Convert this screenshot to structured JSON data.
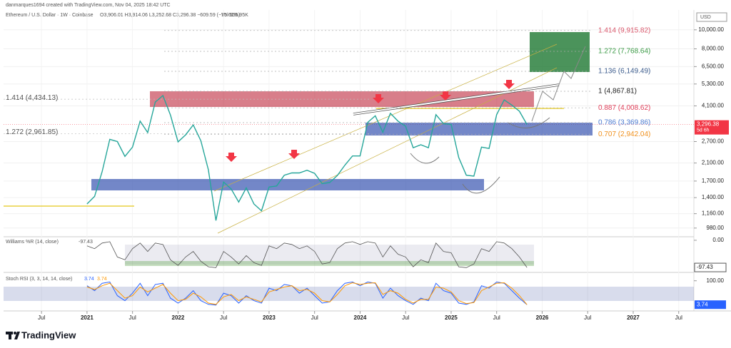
{
  "header": {
    "author": "danmarques1694 created with TradingView.com, Nov 04, 2025 18:42 UTC",
    "symbol": "Ethereum / U.S. Dollar · 1W · Coinbase",
    "ohlc": "O3,906.01 H3,914.06 L3,252.68 C3,296.38 −609.59 (−15.61%)",
    "volume": "Vol 555.95K",
    "currency": "USD"
  },
  "chart_data": [
    {
      "type": "line",
      "log_scale": true,
      "grid": true,
      "color": "#26a69a",
      "x": [
        "2021-01",
        "2021-02",
        "2021-03",
        "2021-04",
        "2021-05",
        "2021-06",
        "2021-07",
        "2021-08",
        "2021-09",
        "2021-10",
        "2021-11",
        "2021-12",
        "2022-01",
        "2022-02",
        "2022-03",
        "2022-04",
        "2022-05",
        "2022-06",
        "2022-07",
        "2022-08",
        "2022-09",
        "2022-10",
        "2022-11",
        "2022-12",
        "2023-01",
        "2023-02",
        "2023-03",
        "2023-04",
        "2023-05",
        "2023-06",
        "2023-07",
        "2023-08",
        "2023-09",
        "2023-10",
        "2023-11",
        "2023-12",
        "2024-01",
        "2024-02",
        "2024-03",
        "2024-04",
        "2024-05",
        "2024-06",
        "2024-07",
        "2024-08",
        "2024-09",
        "2024-10",
        "2024-11",
        "2024-12",
        "2025-01",
        "2025-02",
        "2025-03",
        "2025-04",
        "2025-05",
        "2025-06",
        "2025-07",
        "2025-08",
        "2025-09",
        "2025-10",
        "2025-11"
      ],
      "values": [
        1300,
        1420,
        1900,
        2770,
        2700,
        2270,
        2530,
        3430,
        3000,
        4290,
        4630,
        3680,
        2690,
        2920,
        3280,
        2730,
        1940,
        1070,
        1680,
        1550,
        1330,
        1570,
        1300,
        1200,
        1585,
        1605,
        1820,
        1870,
        1870,
        1930,
        1860,
        1650,
        1670,
        1815,
        2050,
        2280,
        2280,
        3380,
        3650,
        3010,
        3760,
        3430,
        3230,
        2510,
        2600,
        2510,
        3700,
        3330,
        3300,
        2240,
        1820,
        1800,
        2530,
        2490,
        3700,
        4400,
        4140,
        3850,
        3296.38
      ],
      "xlim": [
        "2020-02",
        "2027-09"
      ],
      "xticks": [
        {
          "value": "2020-07",
          "label": "Jul"
        },
        {
          "value": "2021-01",
          "label": "2021"
        },
        {
          "value": "2021-07",
          "label": "Jul"
        },
        {
          "value": "2022-01",
          "label": "2022"
        },
        {
          "value": "2022-07",
          "label": "Jul"
        },
        {
          "value": "2023-01",
          "label": "2023"
        },
        {
          "value": "2023-07",
          "label": "Jul"
        },
        {
          "value": "2024-01",
          "label": "2024"
        },
        {
          "value": "2024-07",
          "label": "Jul"
        },
        {
          "value": "2025-01",
          "label": "2025"
        },
        {
          "value": "2025-07",
          "label": "Jul"
        },
        {
          "value": "2026-01",
          "label": "2026"
        },
        {
          "value": "2026-07",
          "label": "Jul"
        },
        {
          "value": "2027-01",
          "label": "2027"
        },
        {
          "value": "2027-07",
          "label": "Jul"
        }
      ],
      "ylim": [
        900,
        12200
      ],
      "yticks": [
        {
          "value": 10000,
          "label": "10,000.00"
        },
        {
          "value": 8000,
          "label": "8,000.00"
        },
        {
          "value": 6500,
          "label": "6,500.00"
        },
        {
          "value": 5300,
          "label": "5,300.00"
        },
        {
          "value": 4100,
          "label": "4,100.00"
        },
        {
          "value": 2700,
          "label": "2,700.00"
        },
        {
          "value": 2100,
          "label": "2,100.00"
        },
        {
          "value": 1700,
          "label": "1,700.00"
        },
        {
          "value": 1400,
          "label": "1,400.00"
        },
        {
          "value": 1160,
          "label": "1,160.00"
        },
        {
          "value": 980,
          "label": "980.00"
        }
      ],
      "last_price": {
        "value": 3296.38,
        "label": "3,296.38"
      },
      "countdown": "5d 6h",
      "fib_levels": [
        {
          "value": 9915.82,
          "label": "1.414 (9,915.82)",
          "color": "#d9576b"
        },
        {
          "value": 7768.64,
          "label": "1.272 (7,768.64)",
          "color": "#3a9a45"
        },
        {
          "value": 6149.49,
          "label": "1.136 (6,149.49)",
          "color": "#3b5b8c"
        },
        {
          "value": 4867.81,
          "label": "1 (4,867.81)",
          "color": "#222222"
        },
        {
          "value": 4008.62,
          "label": "0.887 (4,008.62)",
          "color": "#e0405a"
        },
        {
          "value": 3369.86,
          "label": "0.786 (3,369.86)",
          "color": "#4a79d0"
        },
        {
          "value": 2942.04,
          "label": "0.707 (2,942.04)",
          "color": "#f0901c"
        }
      ],
      "fib_levels_left": [
        {
          "value": 4434.13,
          "label": "1.414 (4,434.13)",
          "color": "#555555"
        },
        {
          "value": 2961.85,
          "label": "1.272 (2,961.85)",
          "color": "#555555"
        }
      ]
    },
    {
      "type": "line",
      "title": "Williams %R (14, close)",
      "color": "#555555",
      "x": [
        "2021-01",
        "2021-02",
        "2021-03",
        "2021-04",
        "2021-05",
        "2021-06",
        "2021-07",
        "2021-08",
        "2021-09",
        "2021-10",
        "2021-11",
        "2021-12",
        "2022-01",
        "2022-02",
        "2022-03",
        "2022-04",
        "2022-05",
        "2022-06",
        "2022-07",
        "2022-08",
        "2022-09",
        "2022-10",
        "2022-11",
        "2022-12",
        "2023-01",
        "2023-02",
        "2023-03",
        "2023-04",
        "2023-05",
        "2023-06",
        "2023-07",
        "2023-08",
        "2023-09",
        "2023-10",
        "2023-11",
        "2023-12",
        "2024-01",
        "2024-02",
        "2024-03",
        "2024-04",
        "2024-05",
        "2024-06",
        "2024-07",
        "2024-08",
        "2024-09",
        "2024-10",
        "2024-11",
        "2024-12",
        "2025-01",
        "2025-02",
        "2025-03",
        "2025-04",
        "2025-05",
        "2025-06",
        "2025-07",
        "2025-08",
        "2025-09",
        "2025-10",
        "2025-11"
      ],
      "values": [
        -20,
        -30,
        -10,
        -5,
        -60,
        -70,
        -30,
        -10,
        -40,
        -10,
        -15,
        -70,
        -90,
        -60,
        -40,
        -75,
        -95,
        -98,
        -40,
        -60,
        -85,
        -55,
        -80,
        -90,
        -20,
        -30,
        -10,
        -15,
        -30,
        -20,
        -40,
        -85,
        -80,
        -30,
        -10,
        -5,
        -15,
        -5,
        -10,
        -60,
        -20,
        -50,
        -60,
        -95,
        -70,
        -80,
        -10,
        -40,
        -45,
        -95,
        -98,
        -85,
        -30,
        -40,
        -5,
        -10,
        -30,
        -60,
        -97.43
      ],
      "xlim": [
        "2020-02",
        "2027-09"
      ],
      "ylim": [
        -110,
        10
      ],
      "yticks": [
        {
          "value": 0,
          "label": "0.00"
        }
      ]
    },
    {
      "type": "line",
      "title": "Stoch RSI (3, 3, 14, 14, close)",
      "x": [
        "2021-01",
        "2021-02",
        "2021-03",
        "2021-04",
        "2021-05",
        "2021-06",
        "2021-07",
        "2021-08",
        "2021-09",
        "2021-10",
        "2021-11",
        "2021-12",
        "2022-01",
        "2022-02",
        "2022-03",
        "2022-04",
        "2022-05",
        "2022-06",
        "2022-07",
        "2022-08",
        "2022-09",
        "2022-10",
        "2022-11",
        "2022-12",
        "2023-01",
        "2023-02",
        "2023-03",
        "2023-04",
        "2023-05",
        "2023-06",
        "2023-07",
        "2023-08",
        "2023-09",
        "2023-10",
        "2023-11",
        "2023-12",
        "2024-01",
        "2024-02",
        "2024-03",
        "2024-04",
        "2024-05",
        "2024-06",
        "2024-07",
        "2024-08",
        "2024-09",
        "2024-10",
        "2024-11",
        "2024-12",
        "2025-01",
        "2025-02",
        "2025-03",
        "2025-04",
        "2025-05",
        "2025-06",
        "2025-07",
        "2025-08",
        "2025-09",
        "2025-10",
        "2025-11"
      ],
      "series": [
        {
          "color": "#2962ff",
          "values": [
            80,
            60,
            90,
            95,
            40,
            20,
            50,
            90,
            40,
            85,
            90,
            30,
            10,
            30,
            60,
            20,
            5,
            2,
            50,
            40,
            10,
            40,
            20,
            10,
            70,
            60,
            85,
            80,
            50,
            70,
            40,
            10,
            15,
            60,
            90,
            95,
            80,
            95,
            90,
            30,
            70,
            40,
            20,
            5,
            30,
            20,
            90,
            60,
            50,
            10,
            5,
            15,
            80,
            70,
            95,
            90,
            60,
            30,
            3.74
          ]
        },
        {
          "color": "#ff9800",
          "values": [
            75,
            65,
            80,
            90,
            60,
            30,
            40,
            75,
            55,
            70,
            85,
            50,
            20,
            25,
            50,
            35,
            10,
            5,
            35,
            45,
            20,
            35,
            25,
            15,
            55,
            65,
            75,
            80,
            60,
            65,
            50,
            20,
            15,
            45,
            80,
            92,
            85,
            90,
            92,
            45,
            60,
            50,
            25,
            10,
            25,
            25,
            75,
            70,
            55,
            20,
            8,
            12,
            60,
            75,
            90,
            92,
            70,
            40,
            3.74
          ]
        }
      ],
      "xlim": [
        "2020-02",
        "2027-09"
      ],
      "ylim": [
        -10,
        125
      ],
      "yticks": [
        {
          "value": 100,
          "label": "100.00"
        }
      ]
    }
  ],
  "footer": {
    "brand": "TradingView"
  }
}
